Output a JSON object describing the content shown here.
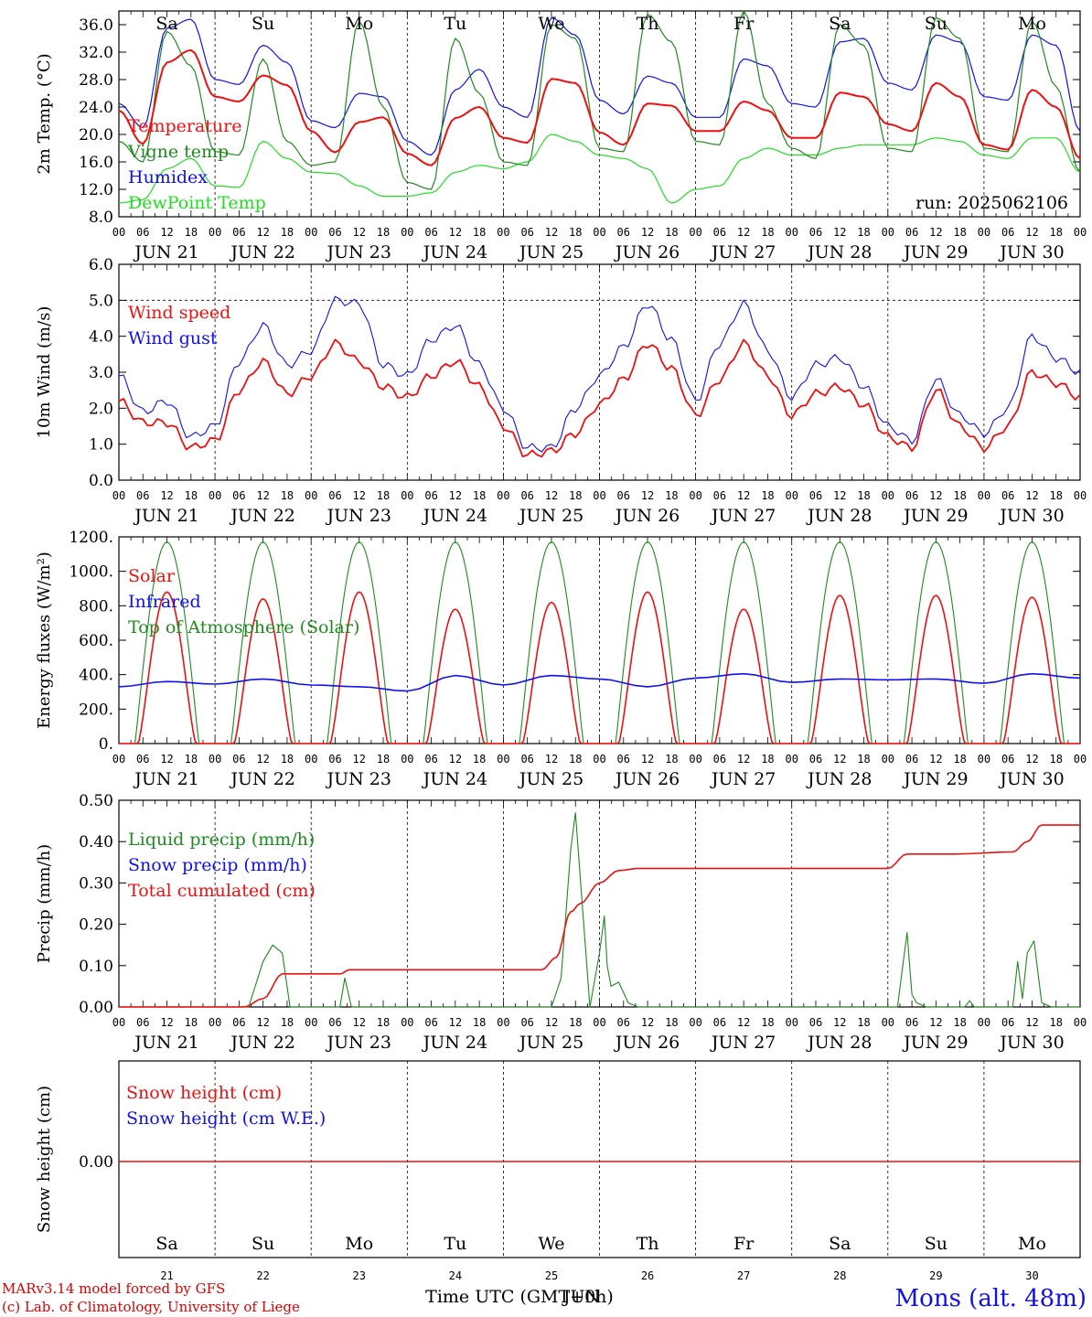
{
  "colors": {
    "red": "#ee1010",
    "green": "#1f8a1f",
    "lightgreen": "#22dd22",
    "blue": "#1010ee",
    "weekend": "#ee1010",
    "weekday": "#000000"
  },
  "days": {
    "dates": [
      "JUN 21",
      "JUN 22",
      "JUN 23",
      "JUN 24",
      "JUN 25",
      "JUN 26",
      "JUN 27",
      "JUN 28",
      "JUN 29",
      "JUN 30"
    ],
    "weekdays": [
      "Sa",
      "Su",
      "Mo",
      "Tu",
      "We",
      "Th",
      "Fr",
      "Sa",
      "Su",
      "Mo"
    ],
    "weekend": [
      true,
      true,
      false,
      false,
      false,
      false,
      false,
      true,
      true,
      false
    ],
    "numbers": [
      "21",
      "22",
      "23",
      "24",
      "25",
      "26",
      "27",
      "28",
      "29",
      "30"
    ],
    "hours": [
      "00",
      "06",
      "12",
      "18"
    ],
    "final_hour": "00"
  },
  "run_label": "run: 2025062106",
  "footer": {
    "model": "MARv3.14 model forced by GFS",
    "lab": "(c) Lab. of Climatology, University of Liege",
    "xaxis": "Time UTC (GMT+0h)",
    "overlap": "JUN",
    "station": "Mons (alt. 48m)"
  },
  "chart_data": [
    {
      "type": "line",
      "id": "temp",
      "ylabel": "2m Temp. (°C)",
      "ylim": [
        8,
        38
      ],
      "ticks": [
        "8.0",
        "12.0",
        "16.0",
        "20.0",
        "24.0",
        "28.0",
        "32.0",
        "36.0"
      ],
      "tick_values": [
        8,
        12,
        16,
        20,
        24,
        28,
        32,
        36
      ],
      "x_unit": "days since JUN 21 00 UTC",
      "x": [
        0,
        0.25,
        0.5,
        0.75,
        1,
        1.25,
        1.5,
        1.75,
        2,
        2.25,
        2.5,
        2.75,
        3,
        3.25,
        3.5,
        3.75,
        4,
        4.25,
        4.5,
        4.75,
        5,
        5.25,
        5.5,
        5.75,
        6,
        6.25,
        6.5,
        6.75,
        7,
        7.25,
        7.5,
        7.75,
        8,
        8.25,
        8.5,
        8.75,
        9,
        9.25,
        9.5,
        9.75,
        10
      ],
      "series": [
        {
          "name": "Temperature",
          "color": "red",
          "values": [
            23.5,
            18.6,
            30.5,
            32.3,
            25.5,
            24.8,
            28.6,
            27.2,
            20.5,
            17.4,
            21.8,
            22.5,
            17.2,
            15.5,
            22.4,
            24,
            19.5,
            18.8,
            28.1,
            27.5,
            20.3,
            18.5,
            24.5,
            24.2,
            20.5,
            20.5,
            24.8,
            23.5,
            19.5,
            19.5,
            26.1,
            25.5,
            21.5,
            20.5,
            27.5,
            25.5,
            18.5,
            17.8,
            26.5,
            24,
            16.5
          ]
        },
        {
          "name": "Vigne temp",
          "color": "green",
          "values": [
            19,
            16,
            35,
            30,
            17.5,
            17,
            31,
            19,
            15.5,
            16,
            36.5,
            24,
            13,
            12,
            34,
            26,
            16,
            15.5,
            36,
            34,
            18,
            17.5,
            37.5,
            33.5,
            19,
            18.5,
            38,
            24.5,
            18,
            16.5,
            36,
            33,
            18,
            17.5,
            37,
            34,
            18,
            17.5,
            36.5,
            27,
            14.5
          ]
        },
        {
          "name": "Humidex",
          "color": "blue",
          "values": [
            24.5,
            21,
            35.5,
            36.8,
            28,
            27.3,
            33,
            30.5,
            22,
            21,
            26,
            25.5,
            19,
            17,
            26.5,
            29.5,
            24,
            22.5,
            37,
            34.5,
            25,
            23,
            28.5,
            27.5,
            22.5,
            22.5,
            31,
            30,
            24.5,
            24,
            33.5,
            34,
            27.5,
            26.5,
            34.5,
            33.5,
            25.5,
            25,
            34.5,
            33,
            20.5
          ]
        },
        {
          "name": "DewPoint Temp",
          "color": "lightgreen",
          "values": [
            10,
            10.5,
            15,
            16.5,
            12.5,
            12.3,
            19,
            16.5,
            14.5,
            14.3,
            12.5,
            11,
            11,
            11.5,
            14.5,
            15.5,
            15,
            16,
            20,
            19,
            17,
            16.5,
            15,
            10,
            12,
            12.5,
            16.5,
            18,
            17,
            17,
            18,
            18.5,
            18.5,
            18.5,
            19.5,
            19,
            17,
            16.5,
            19.5,
            19.5,
            14.5
          ]
        }
      ]
    },
    {
      "type": "line",
      "id": "wind",
      "ylabel": "10m Wind (m/s)",
      "ylim": [
        0,
        6
      ],
      "ticks": [
        "0.0",
        "1.0",
        "2.0",
        "3.0",
        "4.0",
        "5.0",
        "6.0"
      ],
      "tick_values": [
        0,
        1,
        2,
        3,
        4,
        5,
        6
      ],
      "x_unit": "days since JUN 21 00 UTC",
      "x": [
        0,
        0.25,
        0.5,
        0.75,
        1,
        1.25,
        1.5,
        1.75,
        2,
        2.25,
        2.5,
        2.75,
        3,
        3.25,
        3.5,
        3.75,
        4,
        4.25,
        4.5,
        4.75,
        5,
        5.25,
        5.5,
        5.75,
        6,
        6.25,
        6.5,
        6.75,
        7,
        7.25,
        7.5,
        7.75,
        8,
        8.25,
        8.5,
        8.75,
        9,
        9.25,
        9.5,
        9.75,
        10
      ],
      "series": [
        {
          "name": "Wind speed",
          "color": "red",
          "values": [
            2.2,
            1.6,
            1.6,
            0.9,
            1.1,
            2.5,
            3.3,
            2.4,
            2.9,
            3.8,
            3.3,
            2.6,
            2.3,
            2.9,
            3.3,
            2.6,
            1.5,
            0.7,
            0.8,
            1.3,
            2.1,
            2.8,
            3.8,
            3.1,
            1.8,
            2.8,
            3.8,
            2.9,
            1.8,
            2.4,
            2.6,
            2.1,
            1.2,
            0.9,
            2.5,
            1.5,
            0.9,
            1.5,
            3.0,
            2.7,
            2.3
          ]
        },
        {
          "name": "Wind gust",
          "color": "blue",
          "values": [
            2.9,
            1.9,
            2.2,
            1.2,
            1.5,
            3.3,
            4.3,
            3.2,
            3.6,
            5.0,
            4.9,
            3.2,
            2.9,
            3.9,
            4.3,
            3.2,
            2.0,
            0.9,
            0.9,
            2.0,
            2.9,
            3.7,
            4.9,
            3.9,
            2.2,
            3.8,
            4.9,
            3.6,
            2.3,
            3.2,
            3.4,
            2.6,
            1.5,
            1.1,
            2.8,
            1.8,
            1.3,
            2.0,
            4.0,
            3.4,
            3.0
          ]
        }
      ]
    },
    {
      "type": "line",
      "id": "energy",
      "ylabel": "Energy fluxes (W/m²)",
      "ylim": [
        0,
        1200
      ],
      "ticks": [
        "0.",
        "200.",
        "400.",
        "600.",
        "800.",
        "1000.",
        "1200."
      ],
      "tick_values": [
        0,
        200,
        400,
        600,
        800,
        1000,
        1200
      ],
      "series": [
        {
          "name": "Solar",
          "color": "red",
          "peaks": [
            880,
            840,
            880,
            780,
            820,
            880,
            780,
            860,
            860,
            850
          ]
        },
        {
          "name": "Infrared",
          "color": "blue",
          "x": [
            0,
            0.5,
            1,
            1.5,
            2,
            2.5,
            3,
            3.5,
            4,
            4.5,
            5,
            5.5,
            6,
            6.5,
            7,
            7.5,
            8,
            8.5,
            9,
            9.5,
            10
          ],
          "values": [
            330,
            360,
            345,
            375,
            340,
            330,
            305,
            395,
            340,
            395,
            375,
            330,
            380,
            405,
            355,
            375,
            370,
            375,
            350,
            405,
            380
          ]
        },
        {
          "name": "Top of Atmosphere (Solar)",
          "color": "green",
          "peak": 1170
        }
      ]
    },
    {
      "type": "line",
      "id": "precip",
      "ylabel": "Precip (mm/h)",
      "ylim": [
        0,
        0.5
      ],
      "ticks": [
        "0.00",
        "0.10",
        "0.20",
        "0.30",
        "0.40",
        "0.50"
      ],
      "tick_values": [
        0,
        0.1,
        0.2,
        0.3,
        0.4,
        0.5
      ],
      "series": [
        {
          "name": "Liquid precip (mm/h)",
          "color": "green",
          "x": [
            0,
            1.35,
            1.5,
            1.6,
            1.7,
            1.78,
            2,
            2.3,
            2.35,
            2.42,
            2.5,
            4.5,
            4.6,
            4.7,
            4.75,
            4.83,
            4.9,
            5.0,
            5.05,
            5.08,
            5.12,
            5.2,
            5.3,
            5.4,
            8.1,
            8.2,
            8.25,
            8.3,
            8.4,
            8.8,
            8.85,
            8.9,
            9.3,
            9.35,
            9.4,
            9.45,
            9.52,
            9.6,
            9.7,
            10
          ],
          "values": [
            0,
            0,
            0.11,
            0.15,
            0.13,
            0,
            0,
            0,
            0.07,
            0,
            0,
            0,
            0.07,
            0.38,
            0.47,
            0.22,
            0,
            0.13,
            0.22,
            0.1,
            0.05,
            0.06,
            0.01,
            0,
            0,
            0.18,
            0.03,
            0.01,
            0,
            0,
            0.015,
            0,
            0,
            0.11,
            0.02,
            0.13,
            0.16,
            0.01,
            0,
            0
          ]
        },
        {
          "name": "Snow precip (mm/h)",
          "color": "blue",
          "values": []
        },
        {
          "name": "Total cumulated (cm)",
          "color": "red",
          "x": [
            0,
            1.3,
            1.5,
            1.7,
            2,
            2.3,
            2.4,
            4.4,
            4.55,
            4.7,
            4.8,
            5.0,
            5.2,
            5.4,
            8.0,
            8.2,
            8.7,
            9.3,
            9.45,
            9.6,
            10
          ],
          "values": [
            0,
            0,
            0.02,
            0.08,
            0.08,
            0.08,
            0.09,
            0.09,
            0.12,
            0.23,
            0.25,
            0.3,
            0.33,
            0.335,
            0.335,
            0.37,
            0.37,
            0.375,
            0.4,
            0.44,
            0.44
          ]
        }
      ]
    },
    {
      "type": "line",
      "id": "snow",
      "ylabel": "Snow height (cm)",
      "ticks": [
        "0.00"
      ],
      "series": [
        {
          "name": "Snow height (cm)",
          "color": "red",
          "values": [
            0,
            0
          ]
        },
        {
          "name": "Snow height (cm W.E.)",
          "color": "blue",
          "values": []
        }
      ]
    }
  ]
}
